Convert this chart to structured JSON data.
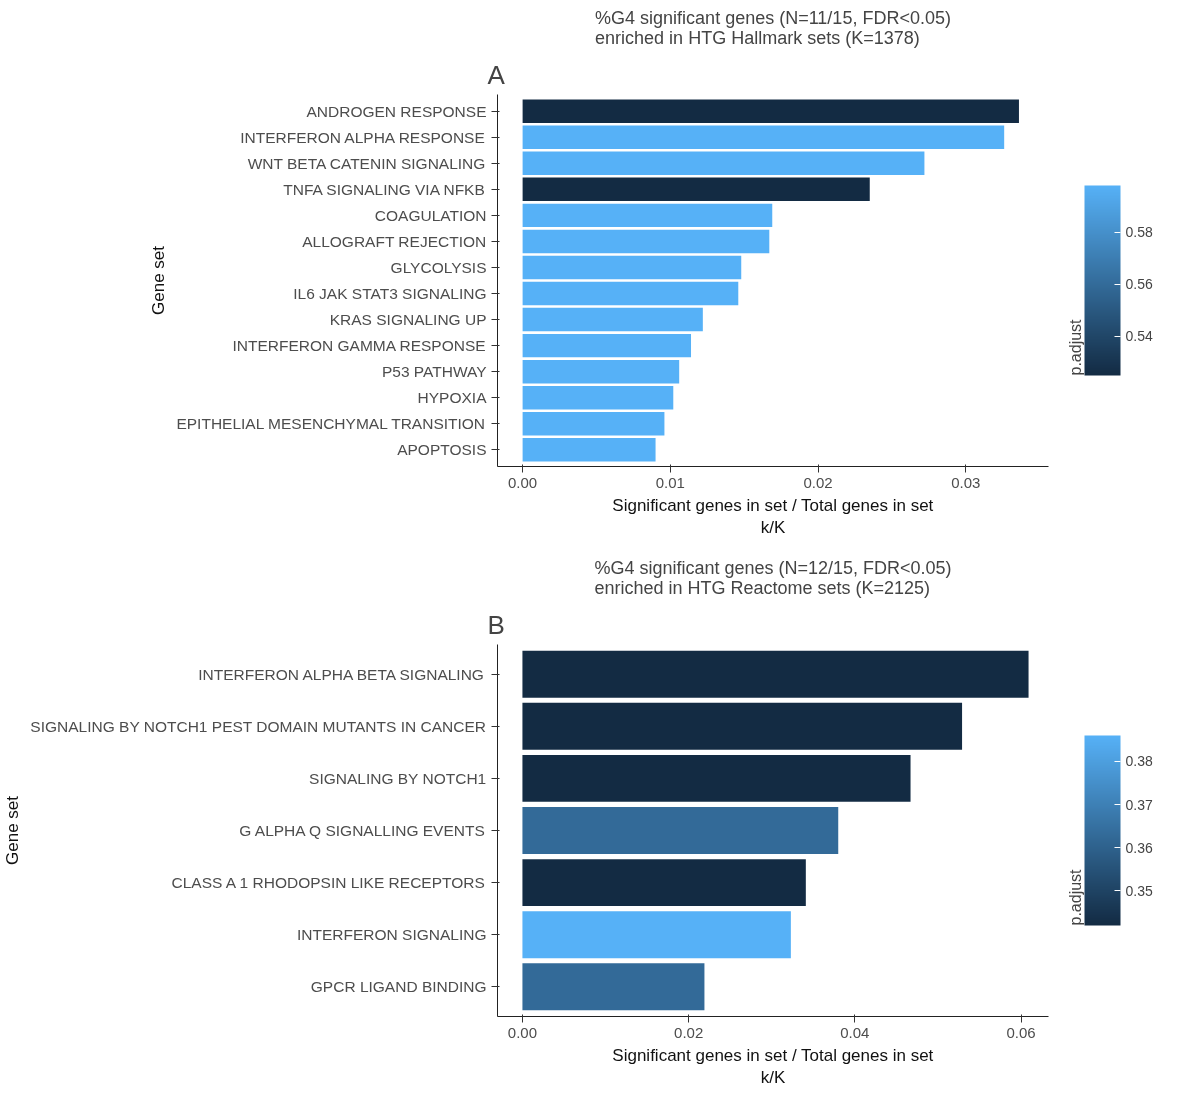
{
  "chart_data": [
    {
      "type": "bar",
      "orientation": "horizontal",
      "title": "%G4 significant genes (N=11/15, FDR<0.05)\nenriched in HTG Hallmark sets (K=1378)",
      "xlabel": "Significant genes in set / Total genes in set\nk/K",
      "ylabel": "Gene set",
      "clabel": "p.adjust",
      "annotations": [
        "A"
      ],
      "categories": [
        "ANDROGEN RESPONSE",
        "INTERFERON ALPHA RESPONSE",
        "WNT BETA CATENIN SIGNALING",
        "TNFA SIGNALING VIA NFKB",
        "COAGULATION",
        "ALLOGRAFT REJECTION",
        "GLYCOLYSIS",
        "IL6 JAK STAT3 SIGNALING",
        "KRAS SIGNALING UP",
        "INTERFERON GAMMA RESPONSE",
        "P53 PATHWAY",
        "HYPOXIA",
        "EPITHELIAL MESENCHYMAL TRANSITION",
        "APOPTOSIS"
      ],
      "values": [
        0.0336,
        0.0326,
        0.0272,
        0.0235,
        0.0169,
        0.0167,
        0.0148,
        0.0146,
        0.0122,
        0.0114,
        0.0106,
        0.0102,
        0.0096,
        0.009
      ],
      "colors": [
        "#132b43",
        "#56b1f7",
        "#56b1f7",
        "#132b43",
        "#56b1f7",
        "#56b1f7",
        "#56b1f7",
        "#56b1f7",
        "#56b1f7",
        "#56b1f7",
        "#56b1f7",
        "#56b1f7",
        "#56b1f7",
        "#56b1f7"
      ],
      "xlim": [
        -0.0017,
        0.0356
      ],
      "xticks": [
        {
          "value": 0,
          "label": "0.00"
        },
        0.01,
        0.02,
        0.03
      ],
      "clim": [
        0.525,
        0.598
      ],
      "cticks": [
        0.54,
        0.56,
        0.58
      ],
      "grid": false
    },
    {
      "type": "bar",
      "orientation": "horizontal",
      "title": "%G4 significant genes (N=12/15, FDR<0.05)\nenriched in HTG Reactome sets (K=2125)",
      "xlabel": "Significant genes in set / Total genes in set\nk/K",
      "ylabel": "Gene set",
      "clabel": "p.adjust",
      "annotations": [
        "B"
      ],
      "categories": [
        "INTERFERON ALPHA BETA SIGNALING",
        "SIGNALING BY NOTCH1 PEST DOMAIN MUTANTS IN CANCER",
        "SIGNALING BY NOTCH1",
        "G ALPHA Q SIGNALLING EVENTS",
        "CLASS A 1 RHODOPSIN LIKE RECEPTORS",
        "INTERFERON SIGNALING",
        "GPCR LIGAND BINDING"
      ],
      "values": [
        0.0609,
        0.0529,
        0.0467,
        0.038,
        0.0341,
        0.0323,
        0.0219
      ],
      "colors": [
        "#132b43",
        "#132b43",
        "#132b43",
        "#336a98",
        "#132b43",
        "#56b1f7",
        "#336a98"
      ],
      "xlim": [
        -0.003,
        0.0633
      ],
      "xticks": [
        {
          "value": 0,
          "label": "0.00"
        },
        0.02,
        0.04,
        0.06
      ],
      "clim": [
        0.342,
        0.386
      ],
      "cticks": [
        0.35,
        0.36,
        0.37,
        0.38
      ],
      "grid": false
    }
  ]
}
